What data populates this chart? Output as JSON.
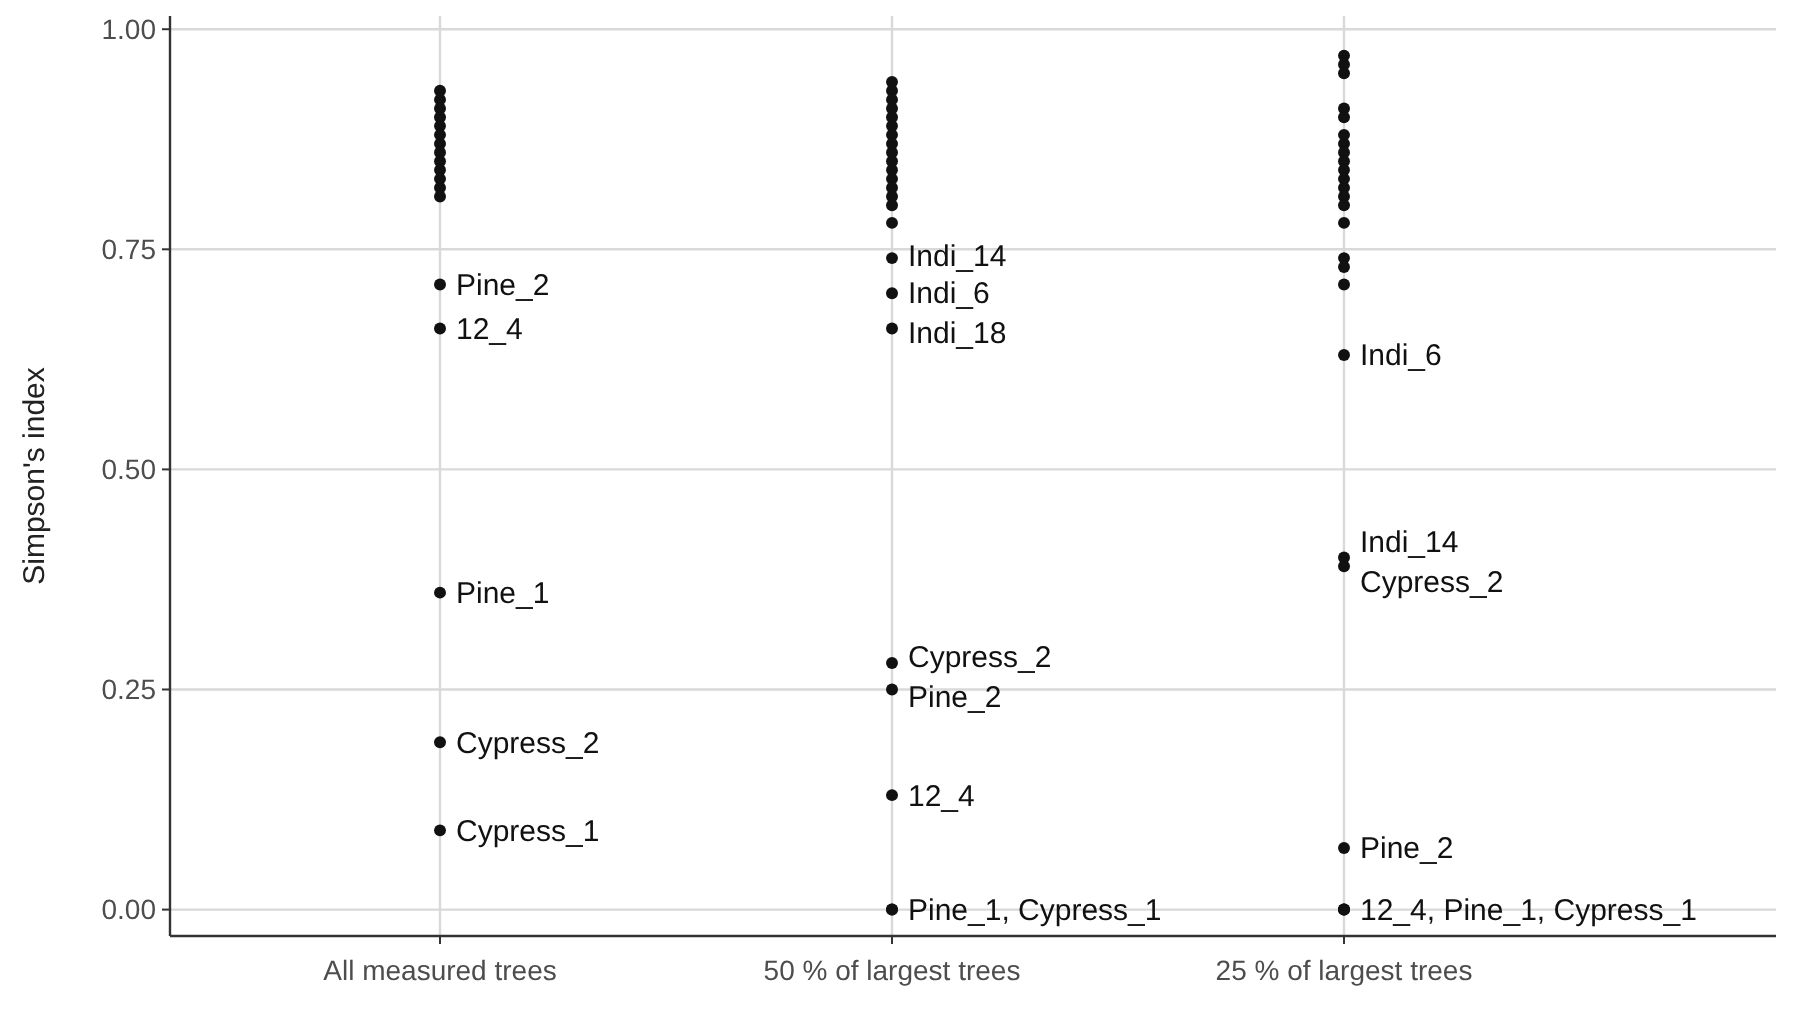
{
  "chart_data": {
    "type": "scatter",
    "ylabel": "Simpson's index",
    "categories": [
      "All measured trees",
      "50 % of largest trees",
      "25 % of largest trees"
    ],
    "series": [
      {
        "color": "#111111",
        "x": [
          "All measured trees",
          "All measured trees",
          "All measured trees",
          "All measured trees",
          "All measured trees",
          "All measured trees",
          "All measured trees",
          "All measured trees",
          "All measured trees",
          "All measured trees",
          "All measured trees",
          "All measured trees",
          "All measured trees",
          "All measured trees",
          "All measured trees",
          "All measured trees",
          "All measured trees",
          "All measured trees",
          "50 % of largest trees",
          "50 % of largest trees",
          "50 % of largest trees",
          "50 % of largest trees",
          "50 % of largest trees",
          "50 % of largest trees",
          "50 % of largest trees",
          "50 % of largest trees",
          "50 % of largest trees",
          "50 % of largest trees",
          "50 % of largest trees",
          "50 % of largest trees",
          "50 % of largest trees",
          "50 % of largest trees",
          "50 % of largest trees",
          "50 % of largest trees",
          "50 % of largest trees",
          "50 % of largest trees",
          "50 % of largest trees",
          "50 % of largest trees",
          "50 % of largest trees",
          "50 % of largest trees",
          "50 % of largest trees",
          "50 % of largest trees",
          "25 % of largest trees",
          "25 % of largest trees",
          "25 % of largest trees",
          "25 % of largest trees",
          "25 % of largest trees",
          "25 % of largest trees",
          "25 % of largest trees",
          "25 % of largest trees",
          "25 % of largest trees",
          "25 % of largest trees",
          "25 % of largest trees",
          "25 % of largest trees",
          "25 % of largest trees",
          "25 % of largest trees",
          "25 % of largest trees",
          "25 % of largest trees",
          "25 % of largest trees",
          "25 % of largest trees",
          "25 % of largest trees",
          "25 % of largest trees",
          "25 % of largest trees",
          "25 % of largest trees",
          "25 % of largest trees",
          "25 % of largest trees",
          "25 % of largest trees"
        ],
        "values": [
          0.93,
          0.92,
          0.91,
          0.9,
          0.89,
          0.88,
          0.87,
          0.86,
          0.85,
          0.84,
          0.83,
          0.82,
          0.81,
          0.71,
          0.66,
          0.36,
          0.19,
          0.09,
          0.94,
          0.93,
          0.92,
          0.91,
          0.9,
          0.89,
          0.88,
          0.87,
          0.86,
          0.85,
          0.84,
          0.83,
          0.82,
          0.81,
          0.8,
          0.78,
          0.74,
          0.7,
          0.66,
          0.28,
          0.25,
          0.13,
          0,
          0,
          0.97,
          0.96,
          0.95,
          0.91,
          0.9,
          0.88,
          0.87,
          0.86,
          0.85,
          0.84,
          0.83,
          0.82,
          0.81,
          0.8,
          0.78,
          0.74,
          0.73,
          0.71,
          0.63,
          0.4,
          0.39,
          0.07,
          0,
          0,
          0
        ]
      }
    ],
    "annotations": [
      {
        "text": "Pine_2",
        "x": "All measured trees",
        "y": 0.71
      },
      {
        "text": "12_4",
        "x": "All measured trees",
        "y": 0.66
      },
      {
        "text": "Pine_1",
        "x": "All measured trees",
        "y": 0.36
      },
      {
        "text": "Cypress_2",
        "x": "All measured trees",
        "y": 0.19
      },
      {
        "text": "Cypress_1",
        "x": "All measured trees",
        "y": 0.09
      },
      {
        "text": "Indi_14",
        "x": "50 % of largest trees",
        "y": 0.74
      },
      {
        "text": "Indi_6",
        "x": "50 % of largest trees",
        "y": 0.7
      },
      {
        "text": "Indi_18",
        "x": "50 % of largest trees",
        "y": 0.66
      },
      {
        "text": "Cypress_2",
        "x": "50 % of largest trees",
        "y": 0.28
      },
      {
        "text": "Pine_2",
        "x": "50 % of largest trees",
        "y": 0.25
      },
      {
        "text": "12_4",
        "x": "50 % of largest trees",
        "y": 0.13
      },
      {
        "text": "Pine_1, Cypress_1",
        "x": "50 % of largest trees",
        "y": 0
      },
      {
        "text": "Indi_6",
        "x": "25 % of largest trees",
        "y": 0.63
      },
      {
        "text": "Indi_14",
        "x": "25 % of largest trees",
        "y": 0.4
      },
      {
        "text": "Cypress_2",
        "x": "25 % of largest trees",
        "y": 0.39
      },
      {
        "text": "Pine_2",
        "x": "25 % of largest trees",
        "y": 0.07
      },
      {
        "text": "12_4, Pine_1, Cypress_1",
        "x": "25 % of largest trees",
        "y": 0
      }
    ],
    "ylim": [
      -0.03,
      1.015
    ],
    "yticks": [
      {
        "value": 0,
        "label": "0.00"
      },
      {
        "value": 0.25,
        "label": "0.25"
      },
      {
        "value": 0.5,
        "label": "0.50"
      },
      {
        "value": 0.75,
        "label": "0.75"
      },
      {
        "value": 1,
        "label": "1.00"
      }
    ],
    "grid": true,
    "marker": "circle"
  }
}
